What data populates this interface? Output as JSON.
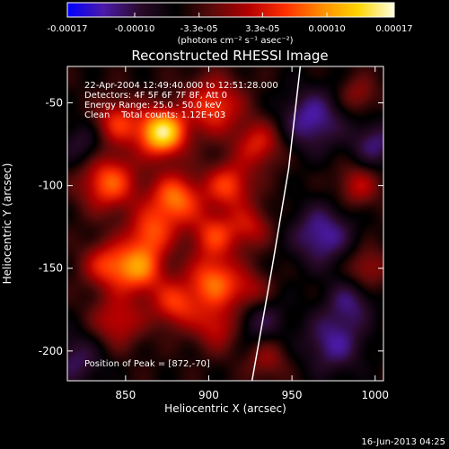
{
  "colorbar": {
    "ticks": [
      "-0.00017",
      "-0.00010",
      "-3.3e-05",
      "3.3e-05",
      "0.00010",
      "0.00017"
    ],
    "range": [
      -0.00017,
      0.00017
    ],
    "unit_label": "(photons cm⁻² s⁻¹ asec⁻²)",
    "stops": [
      "#0000ff",
      "#4b1aa8",
      "#2a0a2a",
      "#000000",
      "#5a0a0a",
      "#b40000",
      "#ff3000",
      "#ff8c00",
      "#ffd400",
      "#ffffe0"
    ]
  },
  "chart_data": {
    "type": "heatmap",
    "title": "Reconstructed RHESSI Image",
    "xlabel": "Heliocentric X (arcsec)",
    "ylabel": "Heliocentric Y (arcsec)",
    "xlim": [
      815,
      1005
    ],
    "ylim": [
      -218,
      -28
    ],
    "xticks": [
      850,
      900,
      950,
      1000
    ],
    "yticks": [
      -50,
      -100,
      -150,
      -200
    ],
    "annotations": [
      "22-Apr-2004 12:49:40.000 to 12:51:28.000",
      "Detectors: 4F 5F 6F 7F 8F, Att 0",
      "Energy Range: 25.0 - 50.0 keV",
      "Clean    Total counts: 1.12E+03"
    ],
    "peak_label": "Position of Peak = [872,-70]",
    "peak": [
      872,
      -70
    ],
    "limb": [
      [
        955,
        -28
      ],
      [
        948,
        -90
      ],
      [
        938,
        -150
      ],
      [
        926,
        -218
      ]
    ],
    "sources": [
      {
        "x": 872,
        "y": -68,
        "amp": 1.15,
        "w": 10
      },
      {
        "x": 845,
        "y": -62,
        "amp": 0.55,
        "w": 10
      },
      {
        "x": 903,
        "y": -52,
        "amp": 0.6,
        "w": 12
      },
      {
        "x": 930,
        "y": -75,
        "amp": 0.5,
        "w": 10
      },
      {
        "x": 840,
        "y": -98,
        "amp": 0.7,
        "w": 12
      },
      {
        "x": 880,
        "y": -108,
        "amp": 0.75,
        "w": 11
      },
      {
        "x": 912,
        "y": -100,
        "amp": 0.6,
        "w": 10
      },
      {
        "x": 865,
        "y": -128,
        "amp": 0.55,
        "w": 10
      },
      {
        "x": 903,
        "y": -130,
        "amp": 0.55,
        "w": 10
      },
      {
        "x": 925,
        "y": -125,
        "amp": 0.4,
        "w": 9
      },
      {
        "x": 858,
        "y": -150,
        "amp": 0.75,
        "w": 11
      },
      {
        "x": 903,
        "y": -158,
        "amp": 0.7,
        "w": 11
      },
      {
        "x": 838,
        "y": -148,
        "amp": 0.5,
        "w": 10
      },
      {
        "x": 880,
        "y": -172,
        "amp": 0.55,
        "w": 10
      },
      {
        "x": 845,
        "y": -182,
        "amp": 0.45,
        "w": 11
      },
      {
        "x": 905,
        "y": -185,
        "amp": 0.45,
        "w": 10
      },
      {
        "x": 925,
        "y": -165,
        "amp": 0.4,
        "w": 9
      },
      {
        "x": 935,
        "y": -205,
        "amp": 0.3,
        "w": 9
      },
      {
        "x": 990,
        "y": -100,
        "amp": 0.4,
        "w": 9
      },
      {
        "x": 995,
        "y": -150,
        "amp": 0.35,
        "w": 9
      },
      {
        "x": 990,
        "y": -45,
        "amp": 0.3,
        "w": 8
      },
      {
        "x": 820,
        "y": -205,
        "amp": -0.35,
        "w": 12
      },
      {
        "x": 962,
        "y": -60,
        "amp": -0.5,
        "w": 13
      },
      {
        "x": 968,
        "y": -130,
        "amp": -0.5,
        "w": 13
      },
      {
        "x": 975,
        "y": -195,
        "amp": -0.45,
        "w": 13
      },
      {
        "x": 930,
        "y": -180,
        "amp": -0.35,
        "w": 11
      },
      {
        "x": 1000,
        "y": -75,
        "amp": -0.4,
        "w": 10
      },
      {
        "x": 985,
        "y": -170,
        "amp": -0.35,
        "w": 10
      },
      {
        "x": 825,
        "y": -75,
        "amp": -0.3,
        "w": 10
      }
    ]
  },
  "footer": {
    "timestamp": "16-Jun-2013 04:25"
  }
}
